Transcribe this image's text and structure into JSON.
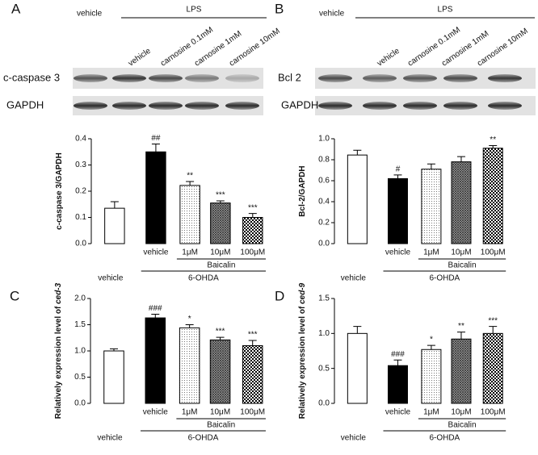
{
  "panels": [
    "A",
    "B",
    "C",
    "D"
  ],
  "blots": [
    {
      "header": {
        "control": "vehicle",
        "treatment": "LPS"
      },
      "lanes": [
        "vehicle",
        "carnosine 0.1mM",
        "carnosine 1mM",
        "carnosine 10mM"
      ],
      "rows": [
        "c-caspase 3",
        "GAPDH"
      ]
    },
    {
      "header": {
        "control": "vehicle",
        "treatment": "LPS"
      },
      "lanes": [
        "vehicle",
        "carnosine 0.1mM",
        "carnosine 1mM",
        "carnosine 10mM"
      ],
      "rows": [
        "Bcl 2",
        "GAPDH"
      ]
    }
  ],
  "chart_data": [
    {
      "type": "bar",
      "ylabel": "c-caspase 3/GAPDH",
      "categories": [
        "vehicle",
        "vehicle",
        "1μM",
        "10μM",
        "100μM"
      ],
      "groups": [
        "Baicalin",
        "6-OHDA"
      ],
      "values": [
        0.135,
        0.35,
        0.222,
        0.155,
        0.1
      ],
      "errors": [
        0.025,
        0.03,
        0.015,
        0.008,
        0.015
      ],
      "annotations": [
        null,
        "##",
        "**",
        "***",
        "***"
      ],
      "bar_styles": [
        "#ffffff",
        "#000000",
        "dots",
        "hatch",
        "check"
      ],
      "ylim": [
        0,
        0.4
      ],
      "yticks": [
        {
          "value": 0,
          "label": "0.0"
        },
        0.1,
        0.2,
        0.3,
        0.4
      ]
    },
    {
      "type": "bar",
      "ylabel": "Bcl-2/GAPDH",
      "categories": [
        "vehicle",
        "vehicle",
        "1μM",
        "10μM",
        "100μM"
      ],
      "groups": [
        "Baicalin",
        "6-OHDA"
      ],
      "values": [
        0.845,
        0.62,
        0.71,
        0.78,
        0.91
      ],
      "errors": [
        0.045,
        0.035,
        0.05,
        0.05,
        0.025
      ],
      "annotations": [
        null,
        "#",
        null,
        null,
        "**"
      ],
      "bar_styles": [
        "#ffffff",
        "#000000",
        "dots",
        "hatch",
        "check"
      ],
      "ylim": [
        0,
        1.0
      ],
      "yticks": [
        {
          "value": 0,
          "label": "0.0"
        },
        0.2,
        0.4,
        0.6,
        0.8,
        {
          "value": 1,
          "label": "1.0"
        }
      ]
    },
    {
      "type": "bar",
      "ylabel": "Relatively expression level of",
      "ylabel_gene": "ced-3",
      "categories": [
        "vehicle",
        "vehicle",
        "1μM",
        "10μM",
        "100μM"
      ],
      "groups": [
        "Baicalin",
        "6-OHDA"
      ],
      "values": [
        1.0,
        1.63,
        1.44,
        1.21,
        1.1
      ],
      "errors": [
        0.04,
        0.07,
        0.06,
        0.05,
        0.1
      ],
      "annotations": [
        null,
        "###",
        "*",
        "***",
        "***"
      ],
      "bar_styles": [
        "#ffffff",
        "#000000",
        "dots",
        "hatch",
        "check"
      ],
      "ylim": [
        0,
        2.0
      ],
      "yticks": [
        {
          "value": 0,
          "label": "0.0"
        },
        0.5,
        {
          "value": 1,
          "label": "1.0"
        },
        1.5,
        {
          "value": 2,
          "label": "2.0"
        }
      ]
    },
    {
      "type": "bar",
      "ylabel": "Relatively expression level of",
      "ylabel_gene": "ced-9",
      "categories": [
        "vehicle",
        "vehicle",
        "1μM",
        "10μM",
        "100μM"
      ],
      "groups": [
        "Baicalin",
        "6-OHDA"
      ],
      "values": [
        1.0,
        0.54,
        0.77,
        0.92,
        1.0
      ],
      "errors": [
        0.1,
        0.08,
        0.06,
        0.1,
        0.1
      ],
      "annotations": [
        null,
        "###",
        "*",
        "**",
        "***"
      ],
      "bar_styles": [
        "#ffffff",
        "#000000",
        "dots",
        "hatch",
        "check"
      ],
      "ylim": [
        0,
        1.5
      ],
      "yticks": [
        {
          "value": 0,
          "label": "0.0"
        },
        0.5,
        {
          "value": 1,
          "label": "1.0"
        },
        1.5
      ]
    }
  ]
}
